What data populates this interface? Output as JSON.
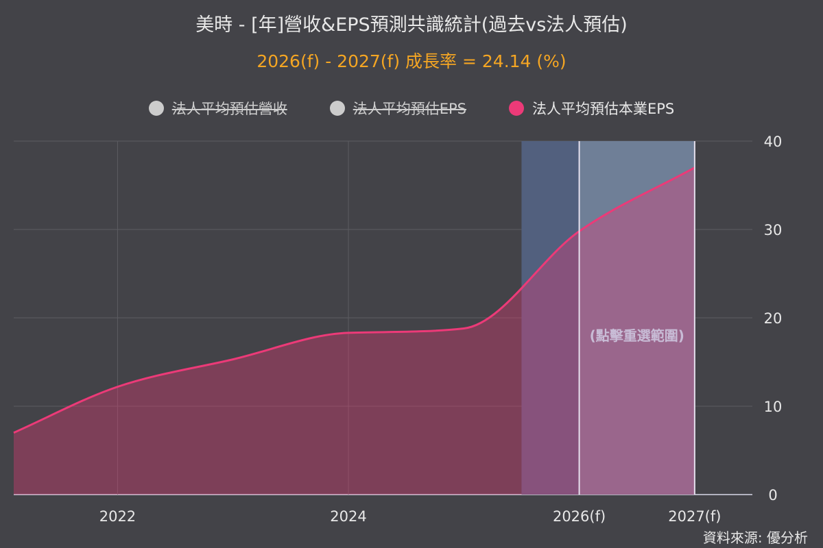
{
  "title": "美時 - [年]營收&EPS預測共識統計(過去vs法人預估)",
  "subtitle": "2026(f) - 2027(f) 成長率 = 24.14 (%)",
  "legend": [
    {
      "label": "法人平均預估營收",
      "color": "#cccccc",
      "state": "off"
    },
    {
      "label": "法人平均預估EPS",
      "color": "#cccccc",
      "state": "off"
    },
    {
      "label": "法人平均預估本業EPS",
      "color": "#ec3a78",
      "state": "on"
    }
  ],
  "source": "資料來源: 優分析",
  "zoom_hint": "(點擊重選範圍)",
  "chart_data": {
    "type": "area",
    "series": [
      {
        "name": "法人平均預估本業EPS",
        "color": "#ec3a78",
        "x": [
          2021.1,
          2022,
          2023,
          2024,
          2025,
          2026,
          2027
        ],
        "y": [
          7.0,
          12.2,
          15.3,
          18.3,
          18.8,
          29.8,
          37.0
        ]
      }
    ],
    "x_ticks": [
      {
        "value": 2022,
        "label": "2022"
      },
      {
        "value": 2024,
        "label": "2024"
      },
      {
        "value": 2026,
        "label": "2026(f)"
      },
      {
        "value": 2027,
        "label": "2027(f)"
      }
    ],
    "y_ticks": [
      0,
      10,
      20,
      30,
      40
    ],
    "xlim": [
      2021.1,
      2027.5
    ],
    "ylim": [
      0,
      40
    ],
    "y_axis_side": "right",
    "grid": true,
    "forecast_band": [
      2025.5,
      2027
    ],
    "selected_range": [
      2026,
      2027
    ]
  }
}
